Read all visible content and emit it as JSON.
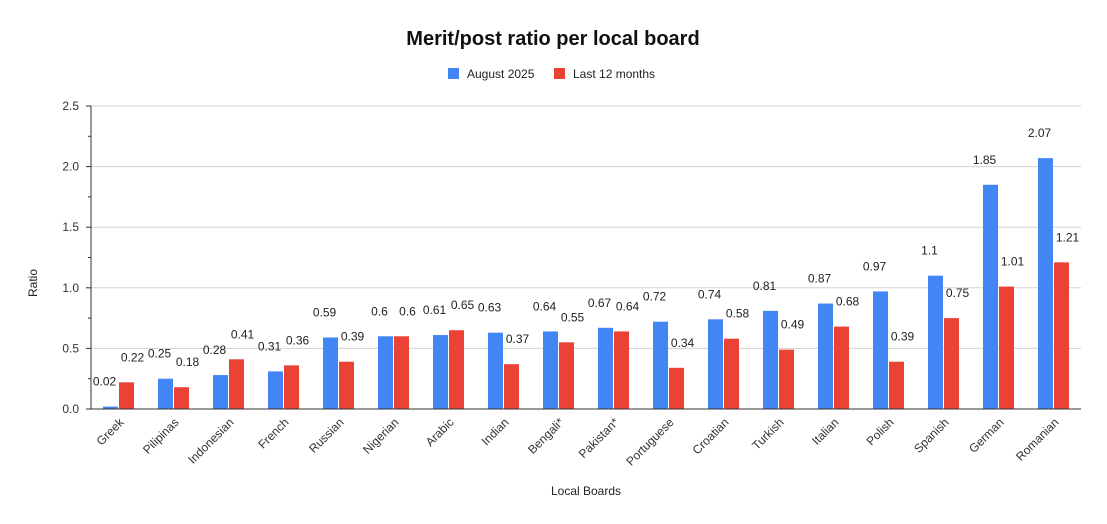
{
  "chart_data": {
    "type": "bar",
    "title": "Merit/post ratio per local board",
    "xlabel": "Local Boards",
    "ylabel": "Ratio",
    "ylim": [
      0,
      2.5
    ],
    "yticks": [
      "0.0",
      "0.5",
      "1.0",
      "1.5",
      "2.0",
      "2.5"
    ],
    "grid": true,
    "legend_position": "top-center",
    "categories": [
      "Greek",
      "Pilipinas",
      "Indonesian",
      "French",
      "Russian",
      "Nigerian",
      "Arabic",
      "Indian",
      "Bengali*",
      "Pakistan*",
      "Portuguese",
      "Croatian",
      "Turkish",
      "Italian",
      "Polish",
      "Spanish",
      "German",
      "Romanian"
    ],
    "series": [
      {
        "name": "August 2025",
        "color": "#4285f4",
        "values": [
          0.02,
          0.25,
          0.28,
          0.31,
          0.59,
          0.6,
          0.61,
          0.63,
          0.64,
          0.67,
          0.72,
          0.74,
          0.81,
          0.87,
          0.97,
          1.1,
          1.85,
          2.07
        ],
        "labels": [
          "0.02",
          "0.25",
          "0.28",
          "0.31",
          "0.59",
          "0.6",
          "0.61",
          "0.63",
          "0.64",
          "0.67",
          "0.72",
          "0.74",
          "0.81",
          "0.87",
          "0.97",
          "1.1",
          "1.85",
          "2.07"
        ]
      },
      {
        "name": "Last 12 months",
        "color": "#ea4335",
        "values": [
          0.22,
          0.18,
          0.41,
          0.36,
          0.39,
          0.6,
          0.65,
          0.37,
          0.55,
          0.64,
          0.34,
          0.58,
          0.49,
          0.68,
          0.39,
          0.75,
          1.01,
          1.21
        ],
        "labels": [
          "0.22",
          "0.18",
          "0.41",
          "0.36",
          "0.39",
          "0.6",
          "0.65",
          "0.37",
          "0.55",
          "0.64",
          "0.34",
          "0.58",
          "0.49",
          "0.68",
          "0.39",
          "0.75",
          "1.01",
          "1.21"
        ]
      }
    ]
  }
}
